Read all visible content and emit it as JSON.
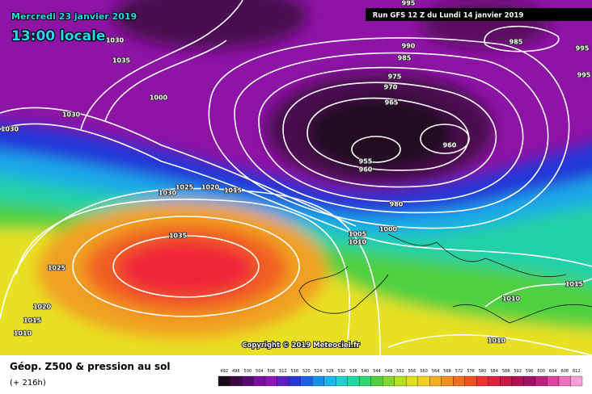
{
  "header": {
    "date": "Mercredi 23 janvier 2019",
    "time": "13:00 locale",
    "run": "Run GFS 12 Z du Lundi 14 janvier 2019"
  },
  "copyright": "Copyright © 2019 Meteociel.fr",
  "isobar_labels": [
    "995",
    "990",
    "985",
    "975",
    "970",
    "965",
    "960",
    "955",
    "960",
    "980",
    "1000",
    "1005",
    "1010",
    "985",
    "995",
    "995",
    "1035",
    "1030",
    "1000",
    "1030",
    "1030",
    "1030",
    "1025",
    "1020",
    "1015",
    "1035",
    "1025",
    "1020",
    "1015",
    "1010",
    "1015",
    "1010",
    "1010"
  ],
  "footer": {
    "title": "Géop. Z500 & pression au sol",
    "lead": "(+ 216h)"
  },
  "legend": {
    "values": [
      492,
      496,
      500,
      504,
      508,
      512,
      516,
      520,
      524,
      528,
      532,
      536,
      540,
      544,
      548,
      552,
      556,
      560,
      564,
      568,
      572,
      576,
      580,
      584,
      588,
      592,
      596,
      600,
      604,
      608,
      612
    ]
  }
}
